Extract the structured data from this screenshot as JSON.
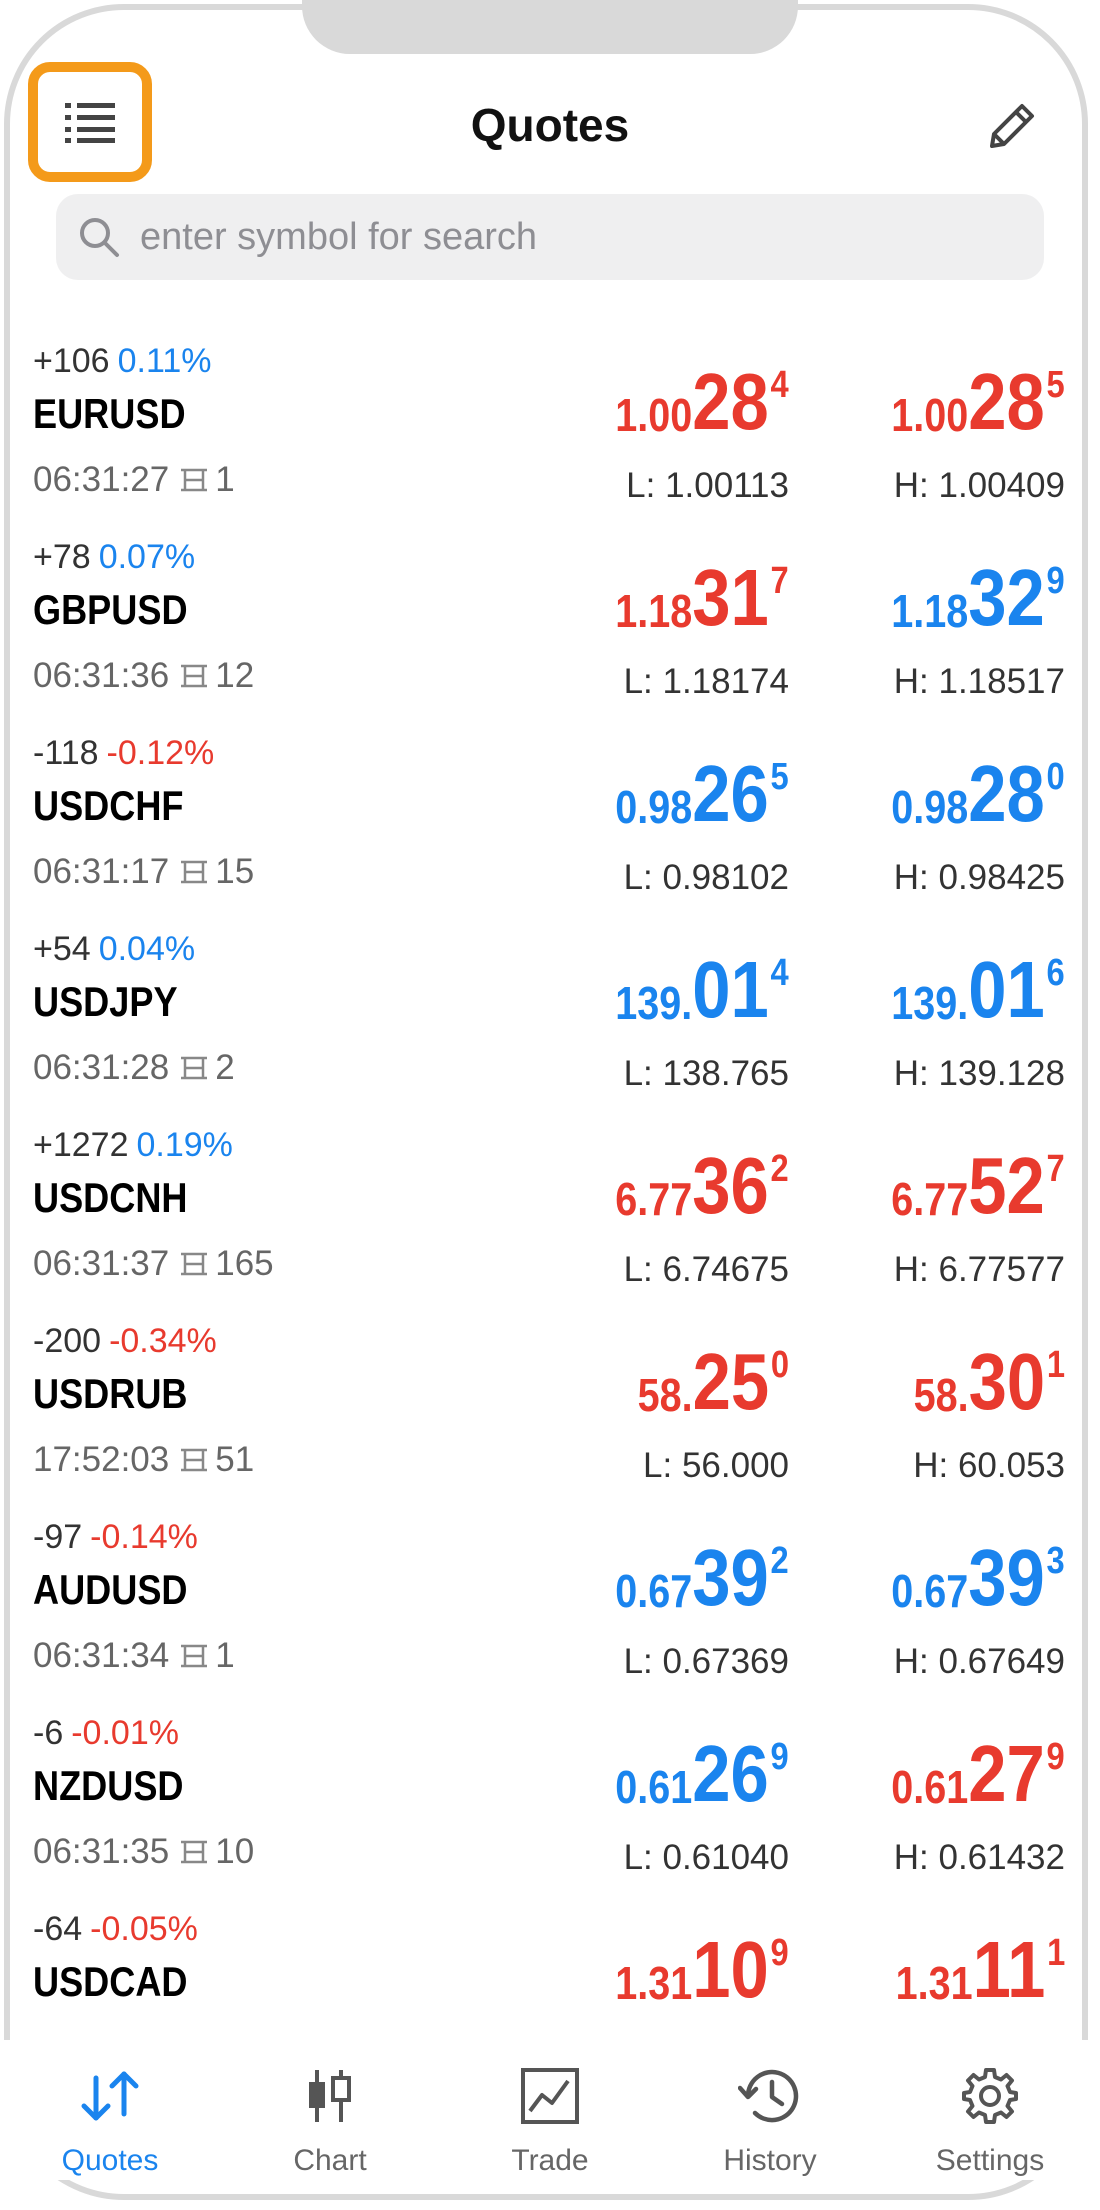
{
  "header": {
    "title": "Quotes",
    "menu_icon": "list-icon",
    "edit_icon": "pencil-icon"
  },
  "search": {
    "placeholder": "enter symbol for search",
    "value": ""
  },
  "colors": {
    "up": "#1a84ee",
    "down": "#e83a2e",
    "highlight": "#f49a1a"
  },
  "quotes": [
    {
      "change_points": "+106",
      "change_pct": "0.11%",
      "pct_color": "blue",
      "symbol": "EURUSD",
      "time": "06:31:27",
      "spread": "1",
      "bid": {
        "small": "1.00",
        "big": "28",
        "tiny": "4",
        "color": "red"
      },
      "ask": {
        "small": "1.00",
        "big": "28",
        "tiny": "5",
        "color": "red"
      },
      "low": "L: 1.00113",
      "high": "H: 1.00409"
    },
    {
      "change_points": "+78",
      "change_pct": "0.07%",
      "pct_color": "blue",
      "symbol": "GBPUSD",
      "time": "06:31:36",
      "spread": "12",
      "bid": {
        "small": "1.18",
        "big": "31",
        "tiny": "7",
        "color": "red"
      },
      "ask": {
        "small": "1.18",
        "big": "32",
        "tiny": "9",
        "color": "blue"
      },
      "low": "L: 1.18174",
      "high": "H: 1.18517"
    },
    {
      "change_points": "-118",
      "change_pct": "-0.12%",
      "pct_color": "red",
      "symbol": "USDCHF",
      "time": "06:31:17",
      "spread": "15",
      "bid": {
        "small": "0.98",
        "big": "26",
        "tiny": "5",
        "color": "blue"
      },
      "ask": {
        "small": "0.98",
        "big": "28",
        "tiny": "0",
        "color": "blue"
      },
      "low": "L: 0.98102",
      "high": "H: 0.98425"
    },
    {
      "change_points": "+54",
      "change_pct": "0.04%",
      "pct_color": "blue",
      "symbol": "USDJPY",
      "time": "06:31:28",
      "spread": "2",
      "bid": {
        "small": "139.",
        "big": "01",
        "tiny": "4",
        "color": "blue"
      },
      "ask": {
        "small": "139.",
        "big": "01",
        "tiny": "6",
        "color": "blue"
      },
      "low": "L: 138.765",
      "high": "H: 139.128"
    },
    {
      "change_points": "+1272",
      "change_pct": "0.19%",
      "pct_color": "blue",
      "symbol": "USDCNH",
      "time": "06:31:37",
      "spread": "165",
      "bid": {
        "small": "6.77",
        "big": "36",
        "tiny": "2",
        "color": "red"
      },
      "ask": {
        "small": "6.77",
        "big": "52",
        "tiny": "7",
        "color": "red"
      },
      "low": "L: 6.74675",
      "high": "H: 6.77577"
    },
    {
      "change_points": "-200",
      "change_pct": "-0.34%",
      "pct_color": "red",
      "symbol": "USDRUB",
      "time": "17:52:03",
      "spread": "51",
      "bid": {
        "small": "58.",
        "big": "25",
        "tiny": "0",
        "color": "red"
      },
      "ask": {
        "small": "58.",
        "big": "30",
        "tiny": "1",
        "color": "red"
      },
      "low": "L: 56.000",
      "high": "H: 60.053"
    },
    {
      "change_points": "-97",
      "change_pct": "-0.14%",
      "pct_color": "red",
      "symbol": "AUDUSD",
      "time": "06:31:34",
      "spread": "1",
      "bid": {
        "small": "0.67",
        "big": "39",
        "tiny": "2",
        "color": "blue"
      },
      "ask": {
        "small": "0.67",
        "big": "39",
        "tiny": "3",
        "color": "blue"
      },
      "low": "L: 0.67369",
      "high": "H: 0.67649"
    },
    {
      "change_points": "-6",
      "change_pct": "-0.01%",
      "pct_color": "red",
      "symbol": "NZDUSD",
      "time": "06:31:35",
      "spread": "10",
      "bid": {
        "small": "0.61",
        "big": "26",
        "tiny": "9",
        "color": "blue"
      },
      "ask": {
        "small": "0.61",
        "big": "27",
        "tiny": "9",
        "color": "red"
      },
      "low": "L: 0.61040",
      "high": "H: 0.61432"
    },
    {
      "change_points": "-64",
      "change_pct": "-0.05%",
      "pct_color": "red",
      "symbol": "USDCAD",
      "time": "",
      "spread": "",
      "bid": {
        "small": "1.31",
        "big": "10",
        "tiny": "9",
        "color": "red"
      },
      "ask": {
        "small": "1.31",
        "big": "11",
        "tiny": "1",
        "color": "red"
      },
      "low": "",
      "high": ""
    }
  ],
  "tabs": [
    {
      "label": "Quotes",
      "icon": "quotes-arrows-icon",
      "active": true
    },
    {
      "label": "Chart",
      "icon": "candlestick-icon",
      "active": false
    },
    {
      "label": "Trade",
      "icon": "trade-chart-icon",
      "active": false
    },
    {
      "label": "History",
      "icon": "history-clock-icon",
      "active": false
    },
    {
      "label": "Settings",
      "icon": "gear-icon",
      "active": false
    }
  ]
}
